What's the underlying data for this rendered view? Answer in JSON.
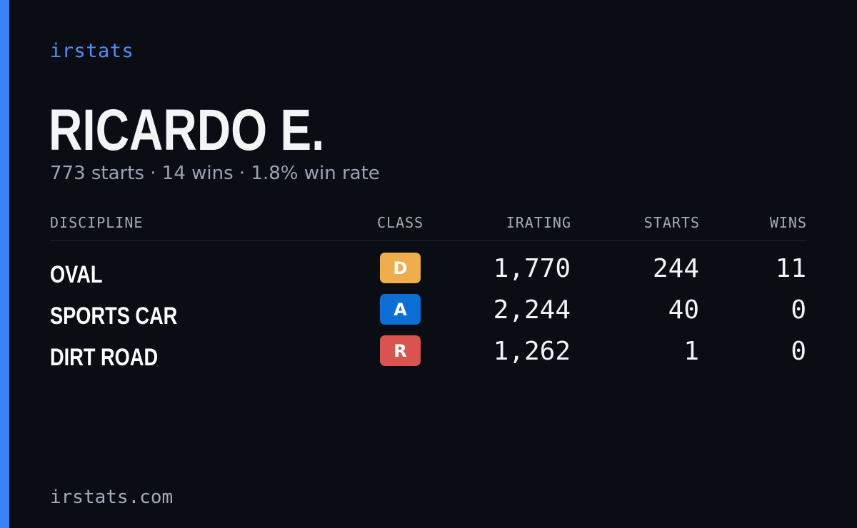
{
  "brand": "irstats",
  "driver_name": "RICARDO E.",
  "summary": "773 starts · 14 wins · 1.8% win rate",
  "columns": {
    "discipline": "DISCIPLINE",
    "class": "CLASS",
    "irating": "IRATING",
    "starts": "STARTS",
    "wins": "WINS"
  },
  "rows": [
    {
      "discipline": "OVAL",
      "class": "D",
      "class_color": "#f0ad4e",
      "irating": "1,770",
      "starts": "244",
      "wins": "11"
    },
    {
      "discipline": "SPORTS CAR",
      "class": "A",
      "class_color": "#0b6fd6",
      "irating": "2,244",
      "starts": "40",
      "wins": "0"
    },
    {
      "discipline": "DIRT ROAD",
      "class": "R",
      "class_color": "#d9534f",
      "irating": "1,262",
      "starts": "1",
      "wins": "0"
    }
  ],
  "footer": "irstats.com",
  "colors": {
    "accent": "#3b82f6",
    "background": "#0a0d14"
  }
}
